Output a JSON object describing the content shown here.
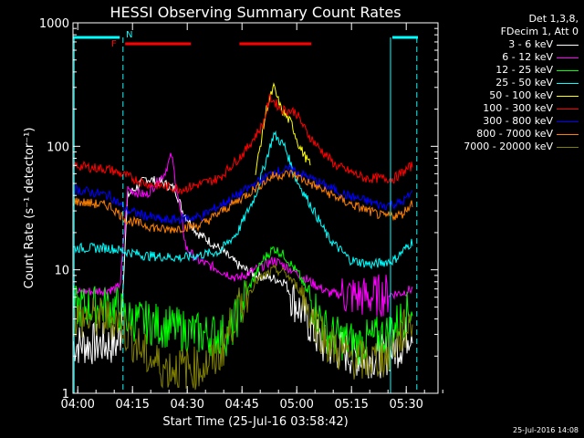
{
  "chart_data": {
    "type": "line",
    "title": "HESSI Observing Summary Count Rates",
    "xlabel": "Start Time (25-Jul-16 03:58:42)",
    "ylabel": "Count Rate (s⁻¹ detector⁻¹)",
    "y_scale": "log",
    "ylim": [
      1,
      1000
    ],
    "y_ticks": [
      "1",
      "10",
      "100",
      "1000"
    ],
    "x_range_minutes": [
      0,
      100
    ],
    "x_ticks": [
      {
        "label": "04:00",
        "min": 1.3
      },
      {
        "label": "04:15",
        "min": 16.3
      },
      {
        "label": "04:30",
        "min": 31.3
      },
      {
        "label": "04:45",
        "min": 46.3
      },
      {
        "label": "05:00",
        "min": 61.3
      },
      {
        "label": "05:15",
        "min": 76.3
      },
      {
        "label": "05:30",
        "min": 91.3
      }
    ],
    "grid": false,
    "legend_position": "right",
    "legend_header": [
      "Det 1,3,8,",
      "FDecim 1, Att 0"
    ],
    "series": [
      {
        "name": "3 - 6 keV",
        "color": "#ffffff",
        "points": [
          [
            0,
            2.5
          ],
          [
            12,
            2.5
          ],
          [
            13,
            3
          ],
          [
            15,
            40
          ],
          [
            20,
            55
          ],
          [
            25,
            50
          ],
          [
            28,
            45
          ],
          [
            30,
            30
          ],
          [
            34,
            20
          ],
          [
            40,
            15
          ],
          [
            45,
            11
          ],
          [
            50,
            9
          ],
          [
            55,
            8.5
          ],
          [
            58,
            8
          ],
          [
            60,
            6
          ],
          [
            64,
            4
          ],
          [
            68,
            2.5
          ],
          [
            78,
            2
          ],
          [
            85,
            2
          ],
          [
            90,
            2.5
          ],
          [
            93,
            3.5
          ]
        ]
      },
      {
        "name": "6 - 12 keV",
        "color": "#ff00ff",
        "points": [
          [
            0,
            6.5
          ],
          [
            12,
            7
          ],
          [
            13,
            8
          ],
          [
            15,
            45
          ],
          [
            20,
            40
          ],
          [
            25,
            60
          ],
          [
            27,
            85
          ],
          [
            29,
            35
          ],
          [
            31,
            15
          ],
          [
            34,
            12
          ],
          [
            40,
            10
          ],
          [
            45,
            8.5
          ],
          [
            50,
            10
          ],
          [
            55,
            12
          ],
          [
            60,
            10
          ],
          [
            65,
            8
          ],
          [
            70,
            6.5
          ],
          [
            80,
            6
          ],
          [
            90,
            6.5
          ],
          [
            93,
            7
          ]
        ]
      },
      {
        "name": "12 - 25 keV",
        "color": "#00ff00",
        "points": [
          [
            0,
            5
          ],
          [
            12,
            5
          ],
          [
            15,
            4
          ],
          [
            25,
            3.5
          ],
          [
            35,
            3
          ],
          [
            43,
            3
          ],
          [
            47,
            6
          ],
          [
            52,
            12
          ],
          [
            55,
            15
          ],
          [
            58,
            13
          ],
          [
            62,
            9
          ],
          [
            66,
            5
          ],
          [
            70,
            3
          ],
          [
            78,
            2.5
          ],
          [
            86,
            3
          ],
          [
            90,
            4
          ],
          [
            93,
            5
          ]
        ]
      },
      {
        "name": "25 - 50 keV",
        "color": "#00ffff",
        "points": [
          [
            0,
            15
          ],
          [
            10,
            15
          ],
          [
            20,
            13
          ],
          [
            30,
            12.5
          ],
          [
            40,
            14
          ],
          [
            45,
            20
          ],
          [
            50,
            40
          ],
          [
            55,
            125
          ],
          [
            58,
            100
          ],
          [
            61,
            55
          ],
          [
            66,
            30
          ],
          [
            70,
            18
          ],
          [
            76,
            12
          ],
          [
            82,
            11
          ],
          [
            88,
            12
          ],
          [
            93,
            17
          ]
        ]
      },
      {
        "name": "50 - 100 keV",
        "color": "#ffff00",
        "points": [
          [
            50,
            60
          ],
          [
            53,
            200
          ],
          [
            55,
            300
          ],
          [
            57,
            200
          ],
          [
            60,
            150
          ],
          [
            62,
            100
          ],
          [
            65,
            70
          ]
        ]
      },
      {
        "name": "100 - 300 keV",
        "color": "#ff0000",
        "points": [
          [
            0,
            70
          ],
          [
            10,
            65
          ],
          [
            20,
            50
          ],
          [
            30,
            45
          ],
          [
            40,
            55
          ],
          [
            47,
            90
          ],
          [
            52,
            150
          ],
          [
            54,
            250
          ],
          [
            57,
            200
          ],
          [
            61,
            190
          ],
          [
            64,
            130
          ],
          [
            67,
            100
          ],
          [
            72,
            70
          ],
          [
            80,
            55
          ],
          [
            88,
            55
          ],
          [
            93,
            70
          ]
        ]
      },
      {
        "name": "300 - 800 keV",
        "color": "#0000ff",
        "points": [
          [
            0,
            45
          ],
          [
            10,
            40
          ],
          [
            15,
            30
          ],
          [
            25,
            25
          ],
          [
            35,
            27
          ],
          [
            45,
            40
          ],
          [
            55,
            62
          ],
          [
            60,
            65
          ],
          [
            65,
            55
          ],
          [
            75,
            40
          ],
          [
            85,
            33
          ],
          [
            90,
            35
          ],
          [
            93,
            42
          ]
        ]
      },
      {
        "name": "800 - 7000 keV",
        "color": "#ff8000",
        "points": [
          [
            0,
            36
          ],
          [
            10,
            33
          ],
          [
            15,
            25
          ],
          [
            25,
            21
          ],
          [
            35,
            23
          ],
          [
            45,
            36
          ],
          [
            55,
            58
          ],
          [
            60,
            60
          ],
          [
            65,
            50
          ],
          [
            75,
            35
          ],
          [
            85,
            27
          ],
          [
            90,
            28
          ],
          [
            93,
            35
          ]
        ]
      },
      {
        "name": "7000 - 20000 keV",
        "color": "#808000",
        "points": [
          [
            0,
            4
          ],
          [
            12,
            4
          ],
          [
            15,
            3
          ],
          [
            20,
            2
          ],
          [
            25,
            1.6
          ],
          [
            30,
            1.6
          ],
          [
            35,
            1.6
          ],
          [
            40,
            2
          ],
          [
            44,
            4
          ],
          [
            50,
            8
          ],
          [
            55,
            10
          ],
          [
            58,
            9.5
          ],
          [
            62,
            7
          ],
          [
            66,
            4
          ],
          [
            70,
            2.5
          ],
          [
            75,
            2
          ],
          [
            80,
            1.8
          ],
          [
            86,
            2
          ],
          [
            90,
            3
          ],
          [
            93,
            4
          ]
        ]
      }
    ],
    "annotations": [
      {
        "text": "N",
        "min": 14.5,
        "color": "#00ffff"
      },
      {
        "text": "F",
        "min": 10.5,
        "color": "#ff0000"
      }
    ],
    "cyan_bars": [
      [
        0,
        12.8
      ],
      [
        87.5,
        94.5
      ]
    ],
    "red_bars": [
      [
        14.3,
        32.3
      ],
      [
        45.6,
        65.3
      ]
    ],
    "cyan_dashed_verticals": [
      13.7,
      94.2
    ],
    "cyan_solid_verticals": [
      0.3,
      87.0
    ]
  },
  "timestamp": "25-Jul-2016 14:08"
}
